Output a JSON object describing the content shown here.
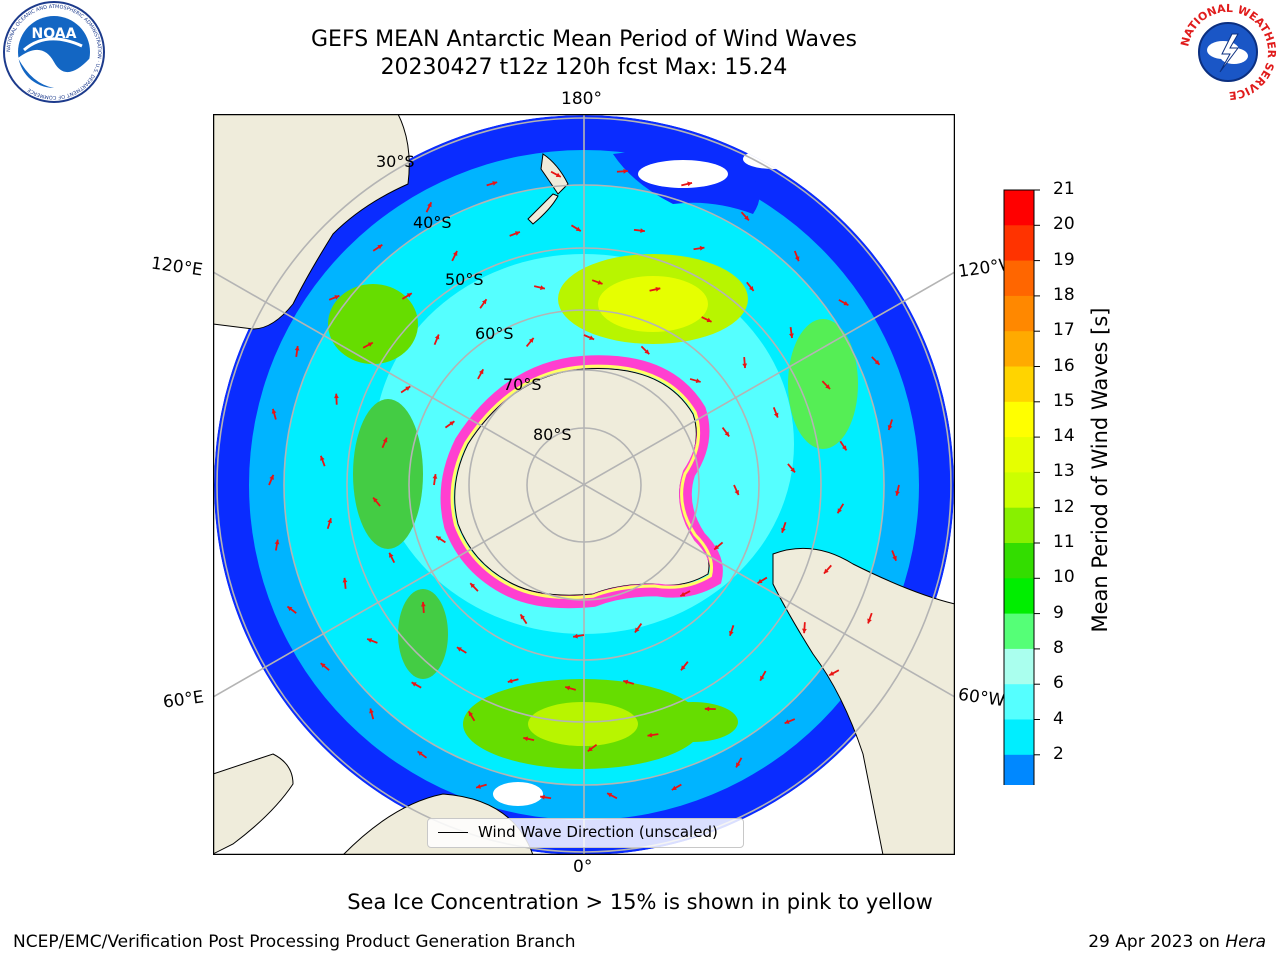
{
  "title": {
    "line1": "GEFS MEAN Antarctic Mean Period of Wind Waves",
    "line2": "20230427 t12z 120h fcst   Max: 15.24"
  },
  "logos": {
    "left": {
      "name": "noaa-logo",
      "text": "NOAA",
      "ring_text": "NATIONAL OCEANIC AND ATMOSPHERIC ADMINISTRATION · U.S. DEPARTMENT OF COMMERCE"
    },
    "right": {
      "name": "nws-logo",
      "ring_text": "NATIONAL WEATHER SERVICE"
    }
  },
  "map": {
    "projection": "south-polar-stereographic",
    "longitude_labels": {
      "top": "180°",
      "bottom": "0°",
      "upper_left": "120°E",
      "lower_left": "60°E",
      "upper_right": "120°W",
      "lower_right": "60°W"
    },
    "latitude_labels": [
      "30°S",
      "40°S",
      "50°S",
      "60°S",
      "70°S",
      "80°S"
    ],
    "legend": {
      "label": "Wind Wave Direction (unscaled)"
    },
    "colors": {
      "land": "#efecdb",
      "gridline": "#b4b4b4",
      "arrow": "#e81414",
      "sea_ice_low": "#ff3fd0",
      "sea_ice_high": "#ffff66"
    }
  },
  "colorbar": {
    "label": "Mean Period of Wind Waves [s]",
    "ticks": [
      "21",
      "20",
      "19",
      "18",
      "17",
      "16",
      "15",
      "14",
      "13",
      "12",
      "11",
      "10",
      "9",
      "8",
      "6",
      "4",
      "2"
    ],
    "colors": [
      "#ff0000",
      "#ff3300",
      "#ff6600",
      "#ff8800",
      "#ffaa00",
      "#ffd400",
      "#ffff00",
      "#e6ff00",
      "#ccff00",
      "#88f000",
      "#33dd00",
      "#00ee00",
      "#55ff77",
      "#aaffee",
      "#55ffff",
      "#00eeff",
      "#0088ff",
      "#0000ff"
    ],
    "extend": "min"
  },
  "caption": "Sea Ice Concentration > 15% is shown in pink to yellow",
  "footer": {
    "left": "NCEP/EMC/Verification Post Processing Product Generation Branch",
    "right_prefix": "29 Apr 2023 on ",
    "right_host": "Hera"
  }
}
